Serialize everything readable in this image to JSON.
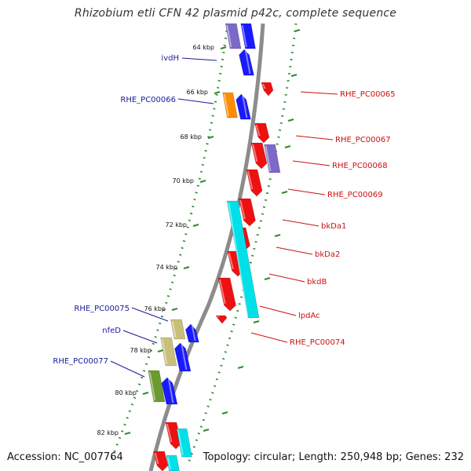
{
  "title": "Rhizobium etli CFN 42 plasmid p42c, complete sequence",
  "footer": {
    "accession": "Accession: NC_007764",
    "summary": "Topology: circular; Length: 250,948 bp; Genes: 232"
  },
  "colors": {
    "backbone": "#8c8c8c",
    "ruler": "#2e8b2e",
    "label_left": "#1a1a9c",
    "label_right": "#cc1111"
  },
  "ticks": [
    {
      "label": "64 kbp"
    },
    {
      "label": "66 kbp"
    },
    {
      "label": "68 kbp"
    },
    {
      "label": "70 kbp"
    },
    {
      "label": "72 kbp"
    },
    {
      "label": "74 kbp"
    },
    {
      "label": "76 kbp"
    },
    {
      "label": "78 kbp"
    },
    {
      "label": "80 kbp"
    },
    {
      "label": "82 kbp"
    }
  ],
  "gene_labels_left": [
    {
      "name": "ivdH",
      "color": "#1a1a9c"
    },
    {
      "name": "RHE_PC00066",
      "color": "#1a1a9c"
    },
    {
      "name": "RHE_PC00075",
      "color": "#1a1a9c"
    },
    {
      "name": "nfeD",
      "color": "#1a1a9c"
    },
    {
      "name": "RHE_PC00077",
      "color": "#1a1a9c"
    }
  ],
  "gene_labels_right": [
    {
      "name": "RHE_PC00065",
      "color": "#cc1111"
    },
    {
      "name": "RHE_PC00067",
      "color": "#cc1111"
    },
    {
      "name": "RHE_PC00068",
      "color": "#cc1111"
    },
    {
      "name": "RHE_PC00069",
      "color": "#cc1111"
    },
    {
      "name": "bkDa1",
      "color": "#cc1111"
    },
    {
      "name": "bkDa2",
      "color": "#cc1111"
    },
    {
      "name": "bkdB",
      "color": "#cc1111"
    },
    {
      "name": "lpdAc",
      "color": "#cc1111"
    },
    {
      "name": "RHE_PC00074",
      "color": "#cc1111"
    }
  ]
}
